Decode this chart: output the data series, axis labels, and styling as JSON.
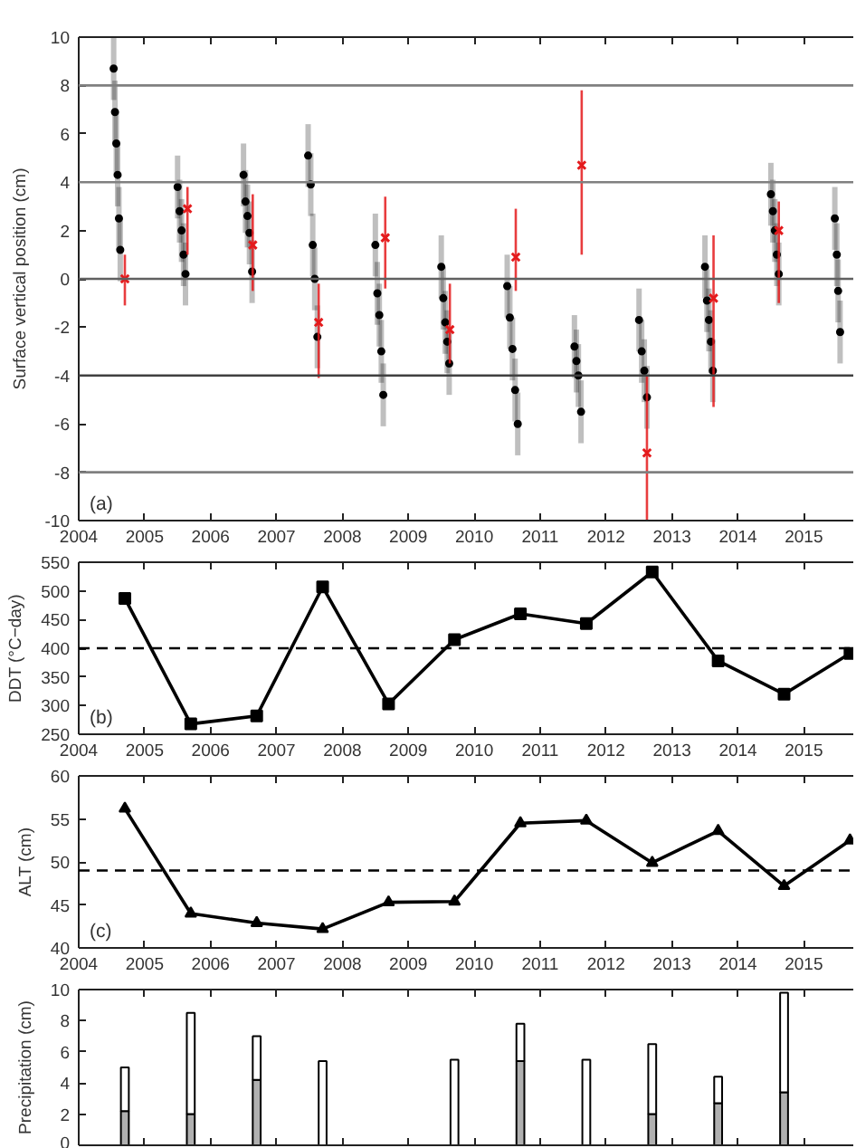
{
  "chart_data": [
    {
      "type": "scatter",
      "ylabel": "Surface vertical position (cm)",
      "xlim": [
        2004,
        2015.75
      ],
      "ylim": [
        -10,
        10
      ],
      "xticks": [
        2004,
        2005,
        2006,
        2007,
        2008,
        2009,
        2010,
        2011,
        2012,
        2013,
        2014,
        2015
      ],
      "yticks": [
        -10,
        -8,
        -6,
        -4,
        -2,
        0,
        2,
        4,
        6,
        8,
        10
      ],
      "annotations": [
        "(a)"
      ],
      "ref_lines": [
        {
          "axis": "y",
          "value": 8,
          "color": "#808080"
        },
        {
          "axis": "y",
          "value": 4,
          "color": "#808080"
        },
        {
          "axis": "y",
          "value": 0,
          "color": "#606060"
        },
        {
          "axis": "y",
          "value": -4,
          "color": "#404040"
        },
        {
          "axis": "y",
          "value": -8,
          "color": "#808080"
        }
      ],
      "series": [
        {
          "color": "#000000",
          "marker": "circle",
          "x": [
            2004.53,
            2004.55,
            2004.57,
            2004.59,
            2004.61,
            2004.63,
            2005.5,
            2005.53,
            2005.56,
            2005.59,
            2005.62,
            2006.5,
            2006.53,
            2006.56,
            2006.59,
            2006.63,
            2007.48,
            2007.52,
            2007.55,
            2007.58,
            2007.62,
            2008.5,
            2008.53,
            2008.56,
            2008.59,
            2008.62,
            2009.5,
            2009.53,
            2009.56,
            2009.59,
            2009.62,
            2010.5,
            2010.54,
            2010.58,
            2010.62,
            2010.66,
            2011.52,
            2011.55,
            2011.58,
            2011.62,
            2012.5,
            2012.54,
            2012.58,
            2012.62,
            2013.5,
            2013.53,
            2013.56,
            2013.59,
            2013.62,
            2014.5,
            2014.53,
            2014.56,
            2014.59,
            2014.62,
            2015.47,
            2015.5,
            2015.52,
            2015.55
          ],
          "values": [
            8.7,
            6.9,
            5.6,
            4.3,
            2.5,
            1.2,
            3.8,
            2.8,
            2.0,
            1.0,
            0.2,
            4.3,
            3.2,
            2.6,
            1.9,
            0.3,
            5.1,
            3.9,
            1.4,
            0.0,
            -2.4,
            1.4,
            -0.6,
            -1.5,
            -3.0,
            -4.8,
            0.5,
            -0.8,
            -1.8,
            -2.6,
            -3.5,
            -0.3,
            -1.6,
            -2.9,
            -4.6,
            -6.0,
            -2.8,
            -3.4,
            -4.0,
            -5.5,
            -1.7,
            -3.0,
            -3.8,
            -4.9,
            0.5,
            -0.9,
            -1.7,
            -2.6,
            -3.8,
            3.5,
            2.8,
            2.0,
            1.0,
            0.2,
            2.5,
            1.0,
            -0.5,
            -2.2
          ],
          "errors": [
            1.3,
            1.3,
            1.3,
            1.3,
            1.3,
            1.3,
            1.3,
            1.3,
            1.3,
            1.3,
            1.3,
            1.3,
            1.3,
            1.3,
            1.3,
            1.3,
            1.3,
            1.3,
            1.3,
            1.3,
            1.3,
            1.3,
            1.3,
            1.3,
            1.3,
            1.3,
            1.3,
            1.3,
            1.3,
            1.3,
            1.3,
            1.3,
            1.3,
            1.3,
            1.3,
            1.3,
            1.3,
            1.3,
            1.3,
            1.3,
            1.3,
            1.3,
            1.3,
            1.3,
            1.3,
            1.3,
            1.3,
            1.3,
            1.3,
            1.3,
            1.3,
            1.3,
            1.3,
            1.3,
            1.3,
            1.3,
            1.3,
            1.3
          ]
        },
        {
          "color": "#e41a1c",
          "marker": "cross",
          "x": [
            2004.7,
            2005.65,
            2006.64,
            2007.64,
            2008.65,
            2009.63,
            2010.63,
            2011.63,
            2012.62,
            2013.63,
            2014.62
          ],
          "values": [
            0.0,
            2.9,
            1.4,
            -1.8,
            1.7,
            -2.1,
            0.9,
            4.7,
            -7.2,
            -0.8,
            2.0
          ],
          "errors": [
            [
              -1.1,
              1.0
            ],
            [
              1.0,
              3.8
            ],
            [
              -0.5,
              3.5
            ],
            [
              -4.1,
              -0.2
            ],
            [
              -0.4,
              3.4
            ],
            [
              -3.5,
              -0.2
            ],
            [
              -0.5,
              2.9
            ],
            [
              1.0,
              7.8
            ],
            [
              -10,
              -4.0
            ],
            [
              -5.3,
              1.8
            ],
            [
              -1.0,
              3.2
            ]
          ]
        }
      ]
    },
    {
      "type": "line",
      "ylabel": "DDT (°C−day)",
      "marker": "square",
      "xlim": [
        2004,
        2015.75
      ],
      "ylim": [
        250,
        550
      ],
      "xticks": [
        2004,
        2005,
        2006,
        2007,
        2008,
        2009,
        2010,
        2011,
        2012,
        2013,
        2014,
        2015
      ],
      "yticks": [
        250,
        300,
        350,
        400,
        450,
        500,
        550
      ],
      "annotations": [
        "(b)"
      ],
      "ref_lines": [
        {
          "axis": "y",
          "value": 400,
          "color": "#000000",
          "line_style": "dashed"
        }
      ],
      "x": [
        2004.7,
        2005.7,
        2006.7,
        2007.7,
        2008.7,
        2009.7,
        2010.7,
        2011.7,
        2012.7,
        2013.7,
        2014.7,
        2015.7
      ],
      "series": [
        {
          "color": "#000000",
          "values": [
            487,
            268,
            282,
            507,
            303,
            415,
            460,
            443,
            533,
            378,
            320,
            391
          ]
        }
      ]
    },
    {
      "type": "line",
      "ylabel": "ALT (cm)",
      "marker": "triangle",
      "xlim": [
        2004,
        2015.75
      ],
      "ylim": [
        40,
        60
      ],
      "xticks": [
        2004,
        2005,
        2006,
        2007,
        2008,
        2009,
        2010,
        2011,
        2012,
        2013,
        2014,
        2015
      ],
      "yticks": [
        40,
        45,
        50,
        55,
        60
      ],
      "annotations": [
        "(c)"
      ],
      "ref_lines": [
        {
          "axis": "y",
          "value": 49,
          "color": "#000000",
          "line_style": "dashed"
        }
      ],
      "x": [
        2004.7,
        2005.7,
        2006.7,
        2007.7,
        2008.7,
        2009.7,
        2010.7,
        2011.7,
        2012.7,
        2013.7,
        2014.7,
        2015.7
      ],
      "series": [
        {
          "color": "#000000",
          "values": [
            56.2,
            44.0,
            42.9,
            42.2,
            45.3,
            45.4,
            54.5,
            54.8,
            49.9,
            53.6,
            47.2,
            52.5
          ]
        }
      ]
    },
    {
      "type": "bar",
      "ylabel": "Precipitation (cm)",
      "tick_labels": "y",
      "xlim": [
        2004,
        2015.75
      ],
      "ylim": [
        0,
        10
      ],
      "xticks": [
        2004,
        2005,
        2006,
        2007,
        2008,
        2009,
        2010,
        2011,
        2012,
        2013,
        2014,
        2015
      ],
      "yticks": [
        0,
        2,
        4,
        6,
        8,
        10
      ],
      "x": [
        2004.7,
        2005.7,
        2006.7,
        2007.7,
        2009.7,
        2010.7,
        2011.7,
        2012.7,
        2013.7,
        2014.7
      ],
      "stacked": true,
      "series": [
        {
          "color": "#b0b0b0",
          "values": [
            2.2,
            2.0,
            4.2,
            null,
            null,
            5.4,
            null,
            2.0,
            2.7,
            3.4
          ]
        },
        {
          "color": "#ffffff",
          "values": [
            2.8,
            6.5,
            2.8,
            5.4,
            5.5,
            2.4,
            5.5,
            4.5,
            1.7,
            6.4
          ]
        }
      ]
    }
  ]
}
